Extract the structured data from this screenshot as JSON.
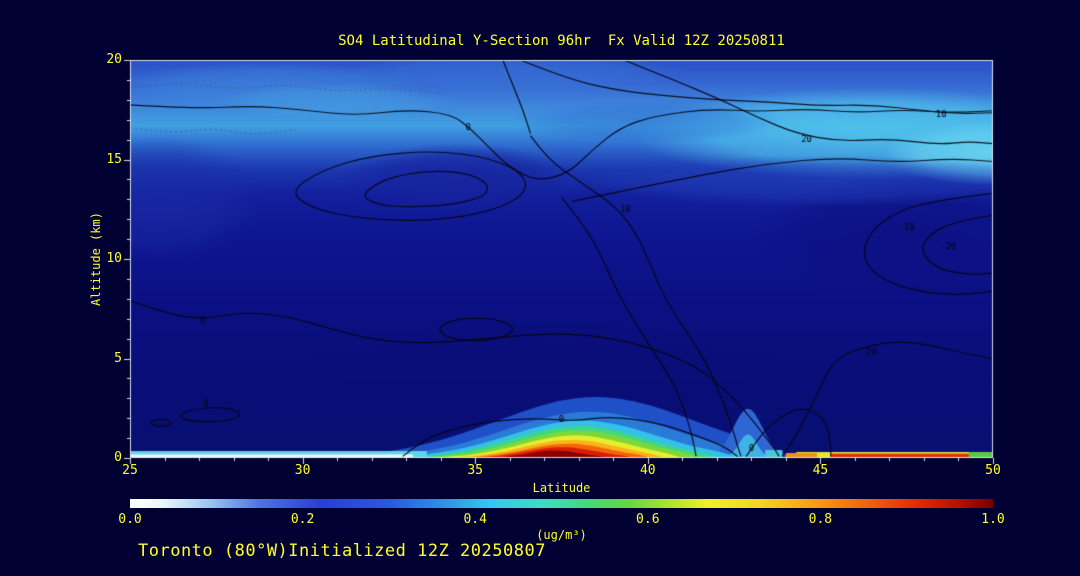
{
  "page": {
    "background": "#000033",
    "accent_text_color": "#ffff2e"
  },
  "title": "SO4 Latitudinal Y-Section 96hr  Fx Valid 12Z 20250811",
  "footer": "Toronto (80°W)Initialized 12Z 20250807",
  "chart_data": {
    "type": "heatmap",
    "title": "SO4 Latitudinal Y-Section 96hr  Fx Valid 12Z 20250811",
    "xlabel": "Latitude",
    "ylabel": "Altitude (km)",
    "xlim": [
      25,
      50
    ],
    "ylim": [
      0,
      20
    ],
    "x_ticks": [
      25,
      30,
      35,
      40,
      45,
      50
    ],
    "y_ticks": [
      0,
      5,
      10,
      15,
      20
    ],
    "x_minor_step": 1,
    "y_minor_step": 1,
    "contour_levels_labeled": [
      -20,
      -10,
      0,
      10,
      20
    ],
    "colorbar": {
      "label": "(ug/m³)",
      "range": [
        0.0,
        1.0
      ],
      "tick_labels": [
        "0.0",
        "0.2",
        "0.4",
        "0.6",
        "0.8",
        "1.0"
      ],
      "stops": [
        [
          0.0,
          "#ffffff"
        ],
        [
          0.04,
          "#e8f4fb"
        ],
        [
          0.09,
          "#9fc8f0"
        ],
        [
          0.15,
          "#4f74e4"
        ],
        [
          0.22,
          "#2b3ed6"
        ],
        [
          0.3,
          "#2858e0"
        ],
        [
          0.36,
          "#2f8ee8"
        ],
        [
          0.42,
          "#35c8ee"
        ],
        [
          0.48,
          "#3cdec0"
        ],
        [
          0.53,
          "#46d87a"
        ],
        [
          0.58,
          "#66d83e"
        ],
        [
          0.63,
          "#b4e42e"
        ],
        [
          0.67,
          "#eef02a"
        ],
        [
          0.73,
          "#f6d422"
        ],
        [
          0.79,
          "#f8a018"
        ],
        [
          0.85,
          "#f4660c"
        ],
        [
          0.91,
          "#e42c04"
        ],
        [
          0.96,
          "#b80e00"
        ],
        [
          1.0,
          "#780000"
        ]
      ]
    },
    "field": {
      "background": [
        [
          0.0,
          "#2b50c6"
        ],
        [
          0.055,
          "#3566d2"
        ],
        [
          0.115,
          "#3f86dc"
        ],
        [
          0.165,
          "#41a0e2"
        ],
        [
          0.215,
          "#2f6cd0"
        ],
        [
          0.275,
          "#1c38b0"
        ],
        [
          0.34,
          "#131f9c"
        ],
        [
          0.45,
          "#0e1590"
        ],
        [
          0.6,
          "#0b1184"
        ],
        [
          0.8,
          "#090e78"
        ],
        [
          1.0,
          "#081072"
        ]
      ],
      "blobs": [
        [
          46.5,
          16.3,
          7.0,
          2.3,
          "#52c8ee",
          0.85
        ],
        [
          50,
          15.3,
          3.2,
          1.6,
          "#6ad6f2",
          0.9
        ],
        [
          29,
          18.7,
          4.5,
          1.2,
          "#3f8ade",
          0.55
        ],
        [
          36,
          19.4,
          5.0,
          1.0,
          "#3a7ad8",
          0.5
        ],
        [
          31,
          17.9,
          3.5,
          0.9,
          "#48a8e4",
          0.45
        ],
        [
          40,
          16.9,
          4.0,
          1.1,
          "#2e6ad2",
          0.5
        ],
        [
          34.5,
          14.1,
          3.4,
          1.7,
          "#16239e",
          0.85
        ],
        [
          25.8,
          13.0,
          3.0,
          3.2,
          "#1b2da8",
          0.6
        ],
        [
          47.5,
          11.0,
          4.5,
          3.2,
          "#0c1082",
          0.8
        ],
        [
          45,
          13.9,
          7.0,
          1.3,
          "#2342bc",
          0.55
        ],
        [
          37,
          4.0,
          8.0,
          3.0,
          "#0a0e78",
          0.6
        ]
      ],
      "plumes": [
        [
          30.8,
          38.5,
          3.1,
          44.2,
          "#2050c8"
        ],
        [
          32.0,
          38.3,
          2.35,
          43.4,
          "#2a7ad8"
        ],
        [
          41.9,
          42.9,
          2.5,
          43.9,
          "#2f66d4"
        ],
        [
          42.3,
          42.9,
          1.2,
          43.5,
          "#3fb4e4"
        ],
        [
          32.8,
          38.1,
          1.9,
          42.7,
          "#35c0e8"
        ],
        [
          33.2,
          38.0,
          1.62,
          42.1,
          "#3ed688"
        ],
        [
          33.5,
          38.0,
          1.4,
          41.6,
          "#7ad83c"
        ],
        [
          33.8,
          37.9,
          1.15,
          41.0,
          "#e8ee2c"
        ],
        [
          34.1,
          37.8,
          0.92,
          40.5,
          "#f8b41c"
        ],
        [
          34.4,
          37.7,
          0.72,
          40.1,
          "#f4660c"
        ],
        [
          34.8,
          37.5,
          0.55,
          39.6,
          "#d81e04"
        ],
        [
          35.3,
          37.3,
          0.38,
          38.9,
          "#8a0200"
        ]
      ],
      "strips": [
        [
          25,
          33.6,
          0,
          0.35,
          "#5ed4ea"
        ],
        [
          25,
          33.2,
          0,
          0.18,
          "#e9f7fa"
        ],
        [
          44.3,
          49.9,
          0,
          0.3,
          "#e8e62a"
        ],
        [
          45.3,
          49.6,
          0.05,
          0.22,
          "#e03004"
        ],
        [
          44.0,
          44.9,
          0,
          0.25,
          "#f09018"
        ],
        [
          43.4,
          43.9,
          0,
          0.4,
          "#48c8d8"
        ],
        [
          49.3,
          50,
          0,
          0.3,
          "#55cc44"
        ]
      ]
    },
    "contours": [
      {
        "closed": false,
        "pts": [
          [
            25,
            17.75
          ],
          [
            27,
            17.55
          ],
          [
            28.5,
            17.7
          ],
          [
            30,
            17.5
          ],
          [
            31.5,
            17.2
          ],
          [
            33,
            17.5
          ],
          [
            34.3,
            17.3
          ],
          [
            34.9,
            16.5
          ],
          [
            35.4,
            15.6
          ],
          [
            36,
            14.6
          ],
          [
            36.8,
            13.9
          ],
          [
            37.7,
            14.3
          ],
          [
            38.4,
            15.5
          ],
          [
            39.2,
            16.6
          ],
          [
            40.2,
            17.2
          ],
          [
            41.8,
            17.55
          ],
          [
            43.2,
            17.4
          ],
          [
            44.6,
            17.55
          ],
          [
            46,
            17.35
          ],
          [
            47.4,
            17.5
          ],
          [
            48.8,
            17.35
          ],
          [
            50,
            17.45
          ]
        ]
      },
      {
        "closed": false,
        "pts": [
          [
            36.3,
            20
          ],
          [
            37.6,
            19.1
          ],
          [
            39,
            18.5
          ],
          [
            40.5,
            18.2
          ],
          [
            42,
            18.0
          ],
          [
            43.5,
            17.9
          ],
          [
            45,
            17.7
          ],
          [
            46.5,
            17.75
          ],
          [
            48,
            17.45
          ],
          [
            49,
            17.3
          ],
          [
            50,
            17.35
          ]
        ]
      },
      {
        "closed": false,
        "pts": [
          [
            39.3,
            20
          ],
          [
            40.6,
            19.1
          ],
          [
            42,
            18.1
          ],
          [
            43.2,
            17.1
          ],
          [
            44.3,
            16.3
          ],
          [
            45.6,
            15.9
          ],
          [
            47,
            16.05
          ],
          [
            48.4,
            15.75
          ],
          [
            49.3,
            15.9
          ],
          [
            50,
            15.8
          ]
        ]
      },
      {
        "closed": false,
        "pts": [
          [
            36.6,
            16.2
          ],
          [
            37.1,
            15.0
          ],
          [
            38.1,
            13.8
          ],
          [
            39.1,
            12.6
          ],
          [
            39.7,
            11.2
          ],
          [
            40.1,
            9.6
          ],
          [
            40.5,
            8.0
          ],
          [
            41.1,
            6.4
          ],
          [
            41.7,
            4.8
          ],
          [
            42.1,
            3.2
          ],
          [
            42.4,
            1.8
          ],
          [
            42.6,
            0.6
          ],
          [
            42.7,
            0.08
          ]
        ]
      },
      {
        "closed": false,
        "pts": [
          [
            35.8,
            20
          ],
          [
            36.1,
            18.7
          ],
          [
            36.4,
            17.4
          ],
          [
            36.6,
            16.3
          ]
        ]
      },
      {
        "closed": false,
        "pts": [
          [
            37.5,
            13.1
          ],
          [
            38.2,
            11.6
          ],
          [
            38.7,
            10.0
          ],
          [
            39.1,
            8.4
          ],
          [
            39.7,
            6.6
          ],
          [
            40.3,
            5.0
          ],
          [
            40.8,
            3.6
          ],
          [
            41.1,
            2.2
          ],
          [
            41.3,
            1.0
          ],
          [
            41.4,
            0.08
          ]
        ]
      },
      {
        "closed": true,
        "pts": [
          [
            29.6,
            13.4
          ],
          [
            30.6,
            14.5
          ],
          [
            32,
            15.2
          ],
          [
            33.8,
            15.45
          ],
          [
            35.4,
            15.1
          ],
          [
            36.4,
            14.3
          ],
          [
            36.5,
            13.3
          ],
          [
            35.5,
            12.4
          ],
          [
            33.8,
            11.9
          ],
          [
            31.8,
            12.0
          ],
          [
            30.3,
            12.5
          ]
        ]
      },
      {
        "closed": true,
        "pts": [
          [
            31.7,
            13.3
          ],
          [
            32.6,
            14.2
          ],
          [
            34.2,
            14.5
          ],
          [
            35.3,
            14.0
          ],
          [
            35.4,
            13.2
          ],
          [
            34.3,
            12.7
          ],
          [
            32.8,
            12.6
          ],
          [
            32.0,
            12.8
          ]
        ]
      },
      {
        "closed": false,
        "pts": [
          [
            25,
            7.9
          ],
          [
            26,
            7.3
          ],
          [
            27.1,
            6.95
          ],
          [
            28.3,
            7.35
          ],
          [
            29.6,
            7.1
          ],
          [
            30.8,
            6.5
          ],
          [
            32,
            5.95
          ],
          [
            33.5,
            5.75
          ],
          [
            35,
            5.95
          ],
          [
            36.5,
            6.2
          ],
          [
            38,
            6.25
          ],
          [
            39.3,
            5.9
          ],
          [
            40.5,
            5.3
          ],
          [
            41.5,
            4.5
          ],
          [
            42.2,
            3.5
          ],
          [
            42.8,
            2.4
          ],
          [
            43.3,
            1.3
          ],
          [
            43.7,
            0.4
          ],
          [
            43.8,
            0.08
          ]
        ]
      },
      {
        "closed": true,
        "pts": [
          [
            33.9,
            6.6
          ],
          [
            34.6,
            7.05
          ],
          [
            35.6,
            7.0
          ],
          [
            36.2,
            6.55
          ],
          [
            35.8,
            6.0
          ],
          [
            34.8,
            5.85
          ],
          [
            34.1,
            6.1
          ]
        ]
      },
      {
        "closed": true,
        "pts": [
          [
            26.3,
            2.1
          ],
          [
            26.9,
            2.5
          ],
          [
            27.8,
            2.55
          ],
          [
            28.3,
            2.2
          ],
          [
            27.8,
            1.85
          ],
          [
            26.9,
            1.8
          ]
        ]
      },
      {
        "closed": true,
        "pts": [
          [
            25.5,
            1.75
          ],
          [
            25.9,
            2.0
          ],
          [
            26.3,
            1.75
          ],
          [
            25.9,
            1.55
          ]
        ]
      },
      {
        "closed": false,
        "pts": [
          [
            50,
            13.3
          ],
          [
            48.5,
            13.0
          ],
          [
            47.2,
            12.4
          ],
          [
            46.4,
            11.3
          ],
          [
            46.2,
            10.0
          ],
          [
            46.8,
            8.9
          ],
          [
            48,
            8.3
          ],
          [
            49.2,
            8.2
          ],
          [
            50,
            8.4
          ]
        ]
      },
      {
        "closed": false,
        "pts": [
          [
            50,
            12.2
          ],
          [
            48.9,
            11.9
          ],
          [
            48.1,
            11.2
          ],
          [
            47.9,
            10.3
          ],
          [
            48.4,
            9.5
          ],
          [
            49.3,
            9.2
          ],
          [
            50,
            9.3
          ]
        ]
      },
      {
        "closed": false,
        "pts": [
          [
            43.9,
            0.08
          ],
          [
            44.4,
            1.4
          ],
          [
            44.9,
            3.2
          ],
          [
            45.4,
            5.0
          ],
          [
            46.3,
            5.6
          ],
          [
            47.3,
            5.9
          ],
          [
            48.4,
            5.6
          ],
          [
            49.3,
            5.2
          ],
          [
            50,
            5.0
          ]
        ]
      },
      {
        "closed": false,
        "pts": [
          [
            37.8,
            12.9
          ],
          [
            39.5,
            13.5
          ],
          [
            41.5,
            14.2
          ],
          [
            43.5,
            14.8
          ],
          [
            45.5,
            15.1
          ],
          [
            47.2,
            14.85
          ],
          [
            48.8,
            15.05
          ],
          [
            50,
            14.9
          ]
        ]
      },
      {
        "closed": false,
        "pts": [
          [
            32.9,
            0.08
          ],
          [
            33.4,
            0.8
          ],
          [
            34.2,
            1.4
          ],
          [
            35.4,
            1.85
          ],
          [
            36.8,
            2.0
          ],
          [
            37.9,
            1.85
          ],
          [
            38.9,
            2.1
          ],
          [
            40.2,
            1.8
          ],
          [
            41.3,
            1.2
          ],
          [
            42.2,
            0.6
          ],
          [
            42.6,
            0.08
          ]
        ]
      },
      {
        "closed": false,
        "pts": [
          [
            42.85,
            0.08
          ],
          [
            43.2,
            1.0
          ],
          [
            43.7,
            1.9
          ],
          [
            44.3,
            2.5
          ],
          [
            44.9,
            2.35
          ],
          [
            45.2,
            1.6
          ],
          [
            45.3,
            0.7
          ],
          [
            45.3,
            0.08
          ]
        ]
      },
      {
        "closed": false,
        "dashed": true,
        "pts": [
          [
            25,
            18.6
          ],
          [
            26.5,
            18.9
          ],
          [
            28,
            18.5
          ],
          [
            29.5,
            18.8
          ],
          [
            31,
            18.4
          ],
          [
            32.5,
            18.6
          ],
          [
            34,
            18.3
          ]
        ]
      },
      {
        "closed": false,
        "dashed": true,
        "pts": [
          [
            25,
            16.6
          ],
          [
            26.2,
            16.3
          ],
          [
            27.4,
            16.6
          ],
          [
            28.6,
            16.2
          ],
          [
            29.8,
            16.5
          ]
        ]
      }
    ],
    "contour_labels": [
      {
        "t": "0",
        "lat": 34.8,
        "alt": 16.6
      },
      {
        "t": "10",
        "lat": 48.5,
        "alt": 17.25
      },
      {
        "t": "20",
        "lat": 44.6,
        "alt": 16.0
      },
      {
        "t": "10",
        "lat": 39.35,
        "alt": 12.5
      },
      {
        "t": "0",
        "lat": 27.1,
        "alt": 6.9
      },
      {
        "t": "-10",
        "lat": 47.5,
        "alt": 11.6
      },
      {
        "t": "-20",
        "lat": 48.7,
        "alt": 10.6
      },
      {
        "t": "-20",
        "lat": 46.4,
        "alt": 5.3
      },
      {
        "t": "0",
        "lat": 27.2,
        "alt": 2.75
      },
      {
        "t": "0",
        "lat": 37.5,
        "alt": 1.95
      },
      {
        "t": "0",
        "lat": 43.0,
        "alt": 0.45
      }
    ]
  }
}
